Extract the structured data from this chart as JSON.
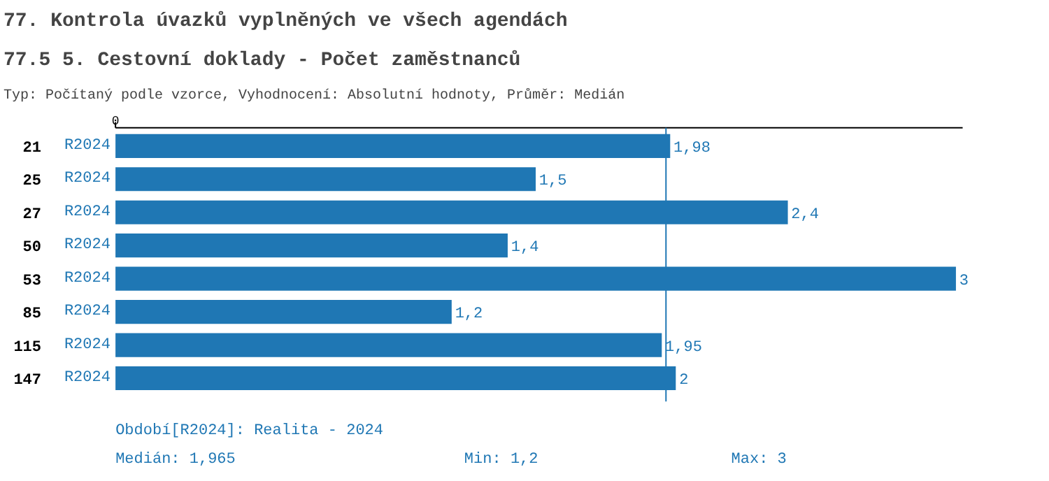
{
  "chart_data": {
    "type": "bar",
    "orientation": "horizontal",
    "title": "77. Kontrola úvazků vyplněných ve všech agendách",
    "subtitle": "77.5 5. Cestovní doklady  - Počet zaměstnanců",
    "categories": [
      "21",
      "25",
      "27",
      "50",
      "53",
      "85",
      "115",
      "147"
    ],
    "series": [
      {
        "name": "R2024",
        "color": "#1f77b4",
        "values": [
          1.98,
          1.5,
          2.4,
          1.4,
          3,
          1.2,
          1.95,
          2
        ],
        "value_labels": [
          "1,98",
          "1,5",
          "2,4",
          "1,4",
          "3",
          "1,2",
          "1,95",
          "2"
        ]
      }
    ],
    "grid": false,
    "ref_lines": [
      {
        "axis": "x",
        "value": 1.965,
        "color": "#1f77b4"
      }
    ],
    "annotations": [
      "0",
      "Typ: Počítaný podle vzorce, Vyhodnocení: Absolutní hodnoty, Průměr: Medián",
      "Období[R2024]: Realita - 2024",
      "Medián: 1,965",
      "Min: 1,2",
      "Max: 3"
    ]
  }
}
